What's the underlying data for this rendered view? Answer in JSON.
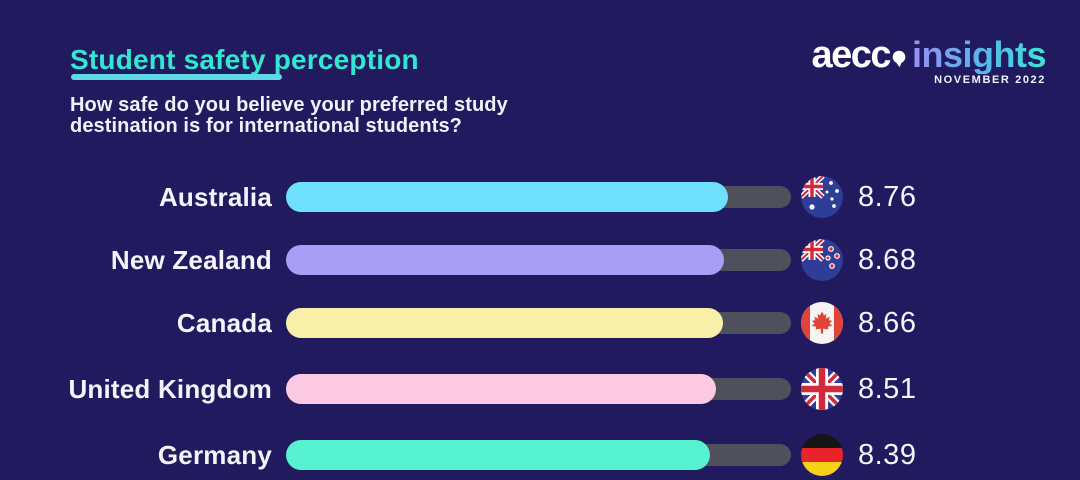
{
  "page": {
    "background": "#211a5e"
  },
  "header": {
    "title": "Student safety perception",
    "title_color": "#33e6d0",
    "underline_color": "#5cd9e4",
    "subtitle": "How safe do you believe your preferred study\ndestination is for international students?"
  },
  "brand": {
    "name": "aecc",
    "product": "insights",
    "date": "NOVEMBER 2022",
    "gradient_start": "#9b8ff3",
    "gradient_mid": "#58b5ec",
    "gradient_end": "#3fe2d6"
  },
  "chart_data": {
    "type": "bar",
    "orientation": "horizontal",
    "title": "Student safety perception",
    "question": "How safe do you believe your preferred study destination is for international students?",
    "scale_max": 10,
    "track_color": "#4f505b",
    "categories": [
      "Australia",
      "New Zealand",
      "Canada",
      "United Kingdom",
      "Germany"
    ],
    "values": [
      8.76,
      8.68,
      8.66,
      8.51,
      8.39
    ],
    "rows": [
      {
        "label": "Australia",
        "value": 8.76,
        "value_label": "8.76",
        "color": "#6fe0fb",
        "flag": "australia"
      },
      {
        "label": "New Zealand",
        "value": 8.68,
        "value_label": "8.68",
        "color": "#a89ef5",
        "flag": "new-zealand"
      },
      {
        "label": "Canada",
        "value": 8.66,
        "value_label": "8.66",
        "color": "#f8f0a8",
        "flag": "canada"
      },
      {
        "label": "United Kingdom",
        "value": 8.51,
        "value_label": "8.51",
        "color": "#fcc9e2",
        "flag": "united-kingdom"
      },
      {
        "label": "Germany",
        "value": 8.39,
        "value_label": "8.39",
        "color": "#55f1d1",
        "flag": "germany"
      }
    ]
  }
}
